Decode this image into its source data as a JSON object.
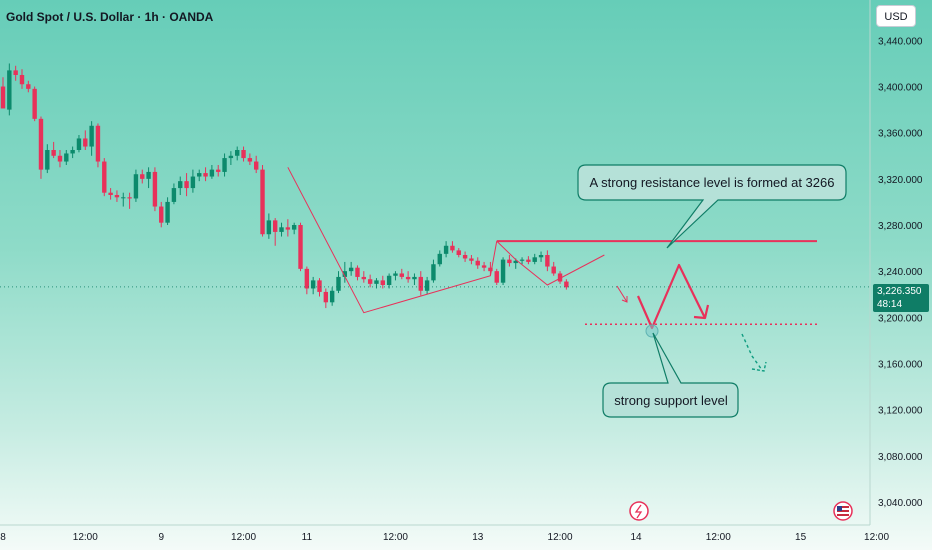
{
  "header": {
    "title": "Gold Spot / U.S. Dollar · 1h · OANDA",
    "currency": "USD"
  },
  "price_tag": {
    "price": "3,226.350",
    "countdown": "48:14"
  },
  "colors": {
    "up": "#0c8a6c",
    "down": "#e8315a",
    "annotation": "#e8315a",
    "callout_fill": "#b5e1d8",
    "callout_border": "#0f7d66"
  },
  "chart_data": {
    "type": "candlestick",
    "ylim": [
      3020,
      3475
    ],
    "y_ticks": [
      "3,440.000",
      "3,400.000",
      "3,360.000",
      "3,320.000",
      "3,280.000",
      "3,240.000",
      "3,200.000",
      "3,160.000",
      "3,120.000",
      "3,080.000",
      "3,040.000"
    ],
    "y_tick_values": [
      3440,
      3400,
      3360,
      3320,
      3280,
      3240,
      3200,
      3160,
      3120,
      3080,
      3040
    ],
    "x_ticks": [
      "8",
      "12:00",
      "9",
      "12:00",
      "11",
      "12:00",
      "13",
      "12:00",
      "14",
      "12:00",
      "15",
      "12:00"
    ],
    "x_tick_index": [
      0,
      13,
      25,
      38,
      48,
      62,
      75,
      88,
      100,
      113,
      126,
      138
    ],
    "current_price": 3226.35,
    "candles": [
      [
        3400,
        3408,
        3385,
        3381
      ],
      [
        3380,
        3420,
        3375,
        3414
      ],
      [
        3414,
        3418,
        3405,
        3410
      ],
      [
        3410,
        3415,
        3398,
        3402
      ],
      [
        3402,
        3405,
        3395,
        3398
      ],
      [
        3398,
        3400,
        3370,
        3372
      ],
      [
        3372,
        3374,
        3320,
        3328
      ],
      [
        3328,
        3350,
        3325,
        3345
      ],
      [
        3345,
        3352,
        3338,
        3340
      ],
      [
        3340,
        3345,
        3330,
        3335
      ],
      [
        3335,
        3345,
        3332,
        3342
      ],
      [
        3342,
        3348,
        3338,
        3345
      ],
      [
        3345,
        3358,
        3343,
        3355
      ],
      [
        3355,
        3362,
        3345,
        3348
      ],
      [
        3348,
        3370,
        3340,
        3366
      ],
      [
        3366,
        3368,
        3330,
        3335
      ],
      [
        3335,
        3338,
        3305,
        3308
      ],
      [
        3308,
        3312,
        3302,
        3306
      ],
      [
        3306,
        3310,
        3300,
        3304
      ],
      [
        3304,
        3308,
        3296,
        3304
      ],
      [
        3304,
        3308,
        3294,
        3303
      ],
      [
        3303,
        3328,
        3300,
        3324
      ],
      [
        3324,
        3328,
        3316,
        3320
      ],
      [
        3320,
        3330,
        3312,
        3326
      ],
      [
        3326,
        3330,
        3292,
        3296
      ],
      [
        3296,
        3300,
        3278,
        3282
      ],
      [
        3282,
        3304,
        3280,
        3300
      ],
      [
        3300,
        3316,
        3298,
        3312
      ],
      [
        3312,
        3322,
        3306,
        3318
      ],
      [
        3318,
        3325,
        3305,
        3312
      ],
      [
        3312,
        3328,
        3308,
        3322
      ],
      [
        3322,
        3328,
        3318,
        3325
      ],
      [
        3325,
        3330,
        3318,
        3322
      ],
      [
        3322,
        3332,
        3320,
        3328
      ],
      [
        3328,
        3332,
        3322,
        3326
      ],
      [
        3326,
        3342,
        3322,
        3338
      ],
      [
        3338,
        3344,
        3332,
        3340
      ],
      [
        3340,
        3348,
        3336,
        3345
      ],
      [
        3345,
        3348,
        3335,
        3338
      ],
      [
        3338,
        3342,
        3332,
        3335
      ],
      [
        3335,
        3340,
        3325,
        3328
      ],
      [
        3328,
        3332,
        3270,
        3272
      ],
      [
        3272,
        3290,
        3268,
        3284
      ],
      [
        3284,
        3286,
        3262,
        3274
      ],
      [
        3274,
        3282,
        3270,
        3278
      ],
      [
        3278,
        3285,
        3270,
        3276
      ],
      [
        3276,
        3282,
        3272,
        3280
      ],
      [
        3280,
        3282,
        3240,
        3242
      ],
      [
        3242,
        3244,
        3220,
        3225
      ],
      [
        3225,
        3235,
        3220,
        3232
      ],
      [
        3232,
        3234,
        3218,
        3222
      ],
      [
        3222,
        3225,
        3208,
        3213
      ],
      [
        3213,
        3226,
        3210,
        3223
      ],
      [
        3223,
        3240,
        3221,
        3235
      ],
      [
        3235,
        3248,
        3230,
        3240
      ],
      [
        3240,
        3248,
        3236,
        3243
      ],
      [
        3243,
        3245,
        3232,
        3235
      ],
      [
        3235,
        3240,
        3230,
        3233
      ],
      [
        3233,
        3237,
        3226,
        3229
      ],
      [
        3229,
        3234,
        3225,
        3232
      ],
      [
        3232,
        3236,
        3225,
        3228
      ],
      [
        3228,
        3238,
        3225,
        3236
      ],
      [
        3236,
        3240,
        3232,
        3238
      ],
      [
        3238,
        3242,
        3233,
        3235
      ],
      [
        3235,
        3240,
        3230,
        3233
      ],
      [
        3233,
        3238,
        3228,
        3235
      ],
      [
        3235,
        3240,
        3219,
        3223
      ],
      [
        3223,
        3235,
        3220,
        3232
      ],
      [
        3232,
        3250,
        3230,
        3246
      ],
      [
        3246,
        3258,
        3244,
        3255
      ],
      [
        3255,
        3266,
        3252,
        3262
      ],
      [
        3262,
        3266,
        3256,
        3258
      ],
      [
        3258,
        3260,
        3252,
        3254
      ],
      [
        3254,
        3257,
        3248,
        3251
      ],
      [
        3251,
        3254,
        3246,
        3249
      ],
      [
        3249,
        3252,
        3242,
        3245
      ],
      [
        3245,
        3248,
        3240,
        3243
      ],
      [
        3243,
        3248,
        3236,
        3240
      ],
      [
        3240,
        3242,
        3228,
        3230
      ],
      [
        3230,
        3252,
        3228,
        3250
      ],
      [
        3250,
        3254,
        3244,
        3247
      ],
      [
        3247,
        3251,
        3242,
        3249
      ],
      [
        3249,
        3252,
        3246,
        3250
      ],
      [
        3250,
        3253,
        3246,
        3248
      ],
      [
        3248,
        3255,
        3246,
        3252
      ],
      [
        3252,
        3257,
        3248,
        3254
      ],
      [
        3254,
        3258,
        3240,
        3244
      ],
      [
        3244,
        3248,
        3236,
        3238
      ],
      [
        3238,
        3240,
        3229,
        3231
      ],
      [
        3231,
        3233,
        3224,
        3226
      ]
    ],
    "resistance": 3266,
    "support": 3194,
    "annotations": [
      {
        "text": "A strong resistance level is formed at 3266"
      },
      {
        "text": "strong support level"
      }
    ]
  }
}
